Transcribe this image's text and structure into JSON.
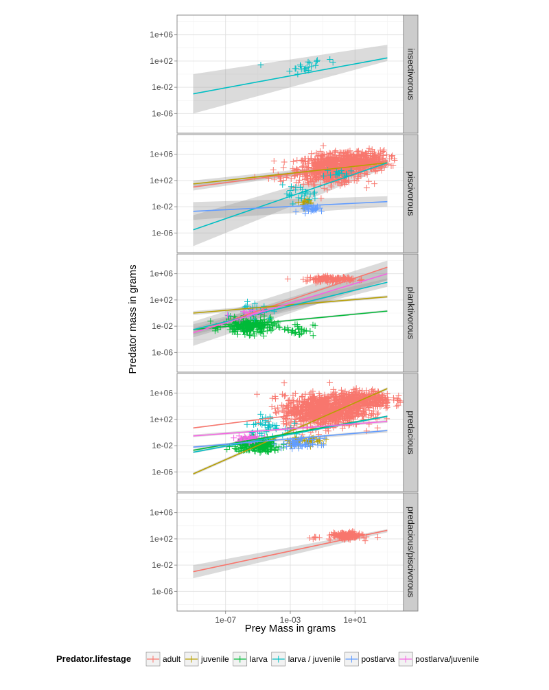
{
  "chart_data": {
    "type": "scatter",
    "title": "",
    "xlabel": "Prey Mass in grams",
    "ylabel": "Predator mass in grams",
    "scale": "log10",
    "xlim": [
      1e-10,
      10000.0
    ],
    "ylim": [
      1e-09,
      1000000000.0
    ],
    "x_ticks": [
      1e-07,
      0.001,
      10.0
    ],
    "x_tick_labels": [
      "1e-07",
      "1e-03",
      "1e+01"
    ],
    "y_ticks": [
      1e-06,
      0.01,
      100.0,
      1000000.0
    ],
    "y_tick_labels": [
      "1e-06",
      "1e-02",
      "1e+02",
      "1e+06"
    ],
    "grid": true,
    "legend": {
      "title": "Predator.lifestage",
      "position": "bottom",
      "entries": [
        {
          "name": "adult",
          "color": "#F8766D"
        },
        {
          "name": "juvenile",
          "color": "#B79F00"
        },
        {
          "name": "larva",
          "color": "#00BA38"
        },
        {
          "name": "larva / juvenile",
          "color": "#00BFC4"
        },
        {
          "name": "postlarva",
          "color": "#619CFF"
        },
        {
          "name": "postlarva/juvenile",
          "color": "#F564E3"
        }
      ]
    },
    "panels": [
      {
        "facet": "insectivorous",
        "points": [
          {
            "series": "larva / juvenile",
            "clusters": [
              {
                "x": 1.5e-05,
                "y": 25,
                "n": 1
              },
              {
                "x": 0.006,
                "y": 5,
                "n": 12,
                "sx": 0.4,
                "sy": 0.5
              },
              {
                "x": 0.02,
                "y": 40,
                "n": 6,
                "sx": 0.3,
                "sy": 0.4
              },
              {
                "x": 0.5,
                "y": 200,
                "n": 2,
                "sx": 0.2,
                "sy": 0.2
              }
            ]
          }
        ],
        "fits": [
          {
            "series": "larva / juvenile",
            "x": [
              1e-09,
              1000
            ],
            "y": [
              0.001,
              300
            ],
            "ci_lower": [
              1e-06,
              100
            ],
            "ci_upper": [
              1,
              30000.0
            ]
          }
        ]
      },
      {
        "facet": "piscivorous",
        "points": [
          {
            "series": "adult",
            "clusters": [
              {
                "x": 0.3,
                "y": 5000,
                "n": 650,
                "sx": 1.0,
                "sy": 1.1
              },
              {
                "x": 20,
                "y": 100000.0,
                "n": 300,
                "sx": 0.9,
                "sy": 0.8
              },
              {
                "x": 0.0002,
                "y": 200,
                "n": 15,
                "sx": 0.5,
                "sy": 0.6
              }
            ]
          },
          {
            "series": "juvenile",
            "clusters": [
              {
                "x": 0.01,
                "y": 0.05,
                "n": 20,
                "sx": 0.3,
                "sy": 0.3
              }
            ]
          },
          {
            "series": "larva / juvenile",
            "clusters": [
              {
                "x": 0.003,
                "y": 1,
                "n": 25,
                "sx": 0.6,
                "sy": 0.6
              },
              {
                "x": 1.5,
                "y": 800,
                "n": 15,
                "sx": 0.5,
                "sy": 0.4
              }
            ]
          },
          {
            "series": "postlarva",
            "clusters": [
              {
                "x": 0.03,
                "y": 0.005,
                "n": 30,
                "sx": 0.4,
                "sy": 0.25
              }
            ]
          }
        ],
        "fits": [
          {
            "series": "adult",
            "x": [
              1e-09,
              1000
            ],
            "y": [
              10,
              100000.0
            ],
            "ci_lower": [
              3,
              70000.0
            ],
            "ci_upper": [
              30,
              140000.0
            ]
          },
          {
            "series": "juvenile",
            "x": [
              1e-09,
              1000
            ],
            "y": [
              30,
              50000.0
            ],
            "ci_lower": [
              10,
              20000.0
            ],
            "ci_upper": [
              100,
              120000.0
            ]
          },
          {
            "series": "larva / juvenile",
            "x": [
              1e-09,
              1000
            ],
            "y": [
              3e-06,
              50000.0
            ],
            "ci_lower": [
              1e-08,
              10000.0
            ],
            "ci_upper": [
              0.0005,
              200000.0
            ]
          },
          {
            "series": "postlarva",
            "x": [
              1e-09,
              1000
            ],
            "y": [
              0.002,
              0.06
            ],
            "ci_lower": [
              0.0001,
              0.01
            ],
            "ci_upper": [
              0.05,
              0.4
            ]
          }
        ]
      },
      {
        "facet": "planktivorous",
        "points": [
          {
            "series": "adult",
            "clusters": [
              {
                "x": 0.3,
                "y": 150000.0,
                "n": 140,
                "sx": 0.7,
                "sy": 0.2
              }
            ]
          },
          {
            "series": "larva",
            "clusters": [
              {
                "x": 3e-06,
                "y": 0.01,
                "n": 220,
                "sx": 0.8,
                "sy": 0.6
              },
              {
                "x": 0.003,
                "y": 0.003,
                "n": 30,
                "sx": 0.5,
                "sy": 0.5
              }
            ]
          },
          {
            "series": "larva / juvenile",
            "clusters": [
              {
                "x": 5e-06,
                "y": 5,
                "n": 20,
                "sx": 0.6,
                "sy": 0.7
              }
            ]
          },
          {
            "series": "postlarva/juvenile",
            "clusters": [
              {
                "x": 2e-06,
                "y": 0.5,
                "n": 15,
                "sx": 0.5,
                "sy": 0.5
              }
            ]
          }
        ],
        "fits": [
          {
            "series": "adult",
            "x": [
              1e-09,
              1000
            ],
            "y": [
              0.001,
              10000000.0
            ],
            "ci_lower": [
              1e-05,
              100000.0
            ],
            "ci_upper": [
              0.05,
              100000000.0
            ]
          },
          {
            "series": "juvenile",
            "x": [
              1e-09,
              1000
            ],
            "y": [
              1,
              300
            ],
            "ci_lower": [
              0.5,
              200
            ],
            "ci_upper": [
              2,
              500
            ]
          },
          {
            "series": "larva",
            "x": [
              1e-09,
              1000
            ],
            "y": [
              0.003,
              2
            ],
            "ci_lower": [
              0.002,
              1.5
            ],
            "ci_upper": [
              0.004,
              3
            ]
          },
          {
            "series": "larva / juvenile",
            "x": [
              1e-09,
              1000
            ],
            "y": [
              0.003,
              50000.0
            ],
            "ci_lower": [
              0.0005,
              10000.0
            ],
            "ci_upper": [
              0.02,
              200000.0
            ]
          },
          {
            "series": "postlarva/juvenile",
            "x": [
              1e-09,
              1000
            ],
            "y": [
              0.001,
              1000000.0
            ],
            "ci_lower": [
              0.0002,
              100000.0
            ],
            "ci_upper": [
              0.005,
              10000000.0
            ]
          }
        ]
      },
      {
        "facet": "predacious",
        "points": [
          {
            "series": "adult",
            "clusters": [
              {
                "x": 0.1,
                "y": 2000,
                "n": 900,
                "sx": 1.2,
                "sy": 1.2
              },
              {
                "x": 30,
                "y": 100000.0,
                "n": 350,
                "sx": 0.9,
                "sy": 0.7
              }
            ]
          },
          {
            "series": "juvenile",
            "clusters": [
              {
                "x": 0.01,
                "y": 0.05,
                "n": 40,
                "sx": 0.7,
                "sy": 0.3
              }
            ]
          },
          {
            "series": "larva",
            "clusters": [
              {
                "x": 1e-05,
                "y": 0.01,
                "n": 220,
                "sx": 0.7,
                "sy": 0.5
              }
            ]
          },
          {
            "series": "larva / juvenile",
            "clusters": [
              {
                "x": 3e-05,
                "y": 10,
                "n": 40,
                "sx": 0.6,
                "sy": 0.7
              }
            ]
          },
          {
            "series": "postlarva",
            "clusters": [
              {
                "x": 0.005,
                "y": 0.02,
                "n": 50,
                "sx": 0.6,
                "sy": 0.4
              }
            ]
          },
          {
            "series": "postlarva/juvenile",
            "clusters": [
              {
                "x": 3e-06,
                "y": 0.1,
                "n": 40,
                "sx": 0.4,
                "sy": 0.25
              }
            ]
          }
        ],
        "fits": [
          {
            "series": "adult",
            "x": [
              1e-09,
              1000
            ],
            "y": [
              5,
              30000.0
            ],
            "ci_lower": [
              4,
              25000.0
            ],
            "ci_upper": [
              6,
              35000.0
            ]
          },
          {
            "series": "juvenile",
            "x": [
              1e-09,
              1000
            ],
            "y": [
              5e-07,
              5000000.0
            ],
            "ci_lower": [
              3e-07,
              3000000.0
            ],
            "ci_upper": [
              8e-07,
              8000000.0
            ]
          },
          {
            "series": "larva",
            "x": [
              1e-09,
              1000
            ],
            "y": [
              0.002,
              300
            ],
            "ci_lower": [
              0.0015,
              200
            ],
            "ci_upper": [
              0.003,
              400
            ]
          },
          {
            "series": "larva / juvenile",
            "x": [
              1e-09,
              1000
            ],
            "y": [
              0.001,
              300
            ],
            "ci_lower": [
              0.0007,
              200
            ],
            "ci_upper": [
              0.0015,
              400
            ]
          },
          {
            "series": "postlarva",
            "x": [
              1e-09,
              1000
            ],
            "y": [
              0.006,
              2
            ],
            "ci_lower": [
              0.004,
              1
            ],
            "ci_upper": [
              0.009,
              3
            ]
          },
          {
            "series": "postlarva/juvenile",
            "x": [
              1e-09,
              1000
            ],
            "y": [
              0.3,
              50
            ],
            "ci_lower": [
              0.2,
              30
            ],
            "ci_upper": [
              0.5,
              80
            ]
          }
        ]
      },
      {
        "facet": "predacious/piscivorous",
        "points": [
          {
            "series": "adult",
            "clusters": [
              {
                "x": 3,
                "y": 300,
                "n": 180,
                "sx": 0.45,
                "sy": 0.25
              },
              {
                "x": 0.05,
                "y": 100,
                "n": 6,
                "sx": 0.2,
                "sy": 0.2
              }
            ]
          }
        ],
        "fits": [
          {
            "series": "adult",
            "x": [
              1e-09,
              1000
            ],
            "y": [
              0.001,
              2000
            ],
            "ci_lower": [
              0.0001,
              1000
            ],
            "ci_upper": [
              0.01,
              3000
            ]
          }
        ]
      }
    ]
  }
}
